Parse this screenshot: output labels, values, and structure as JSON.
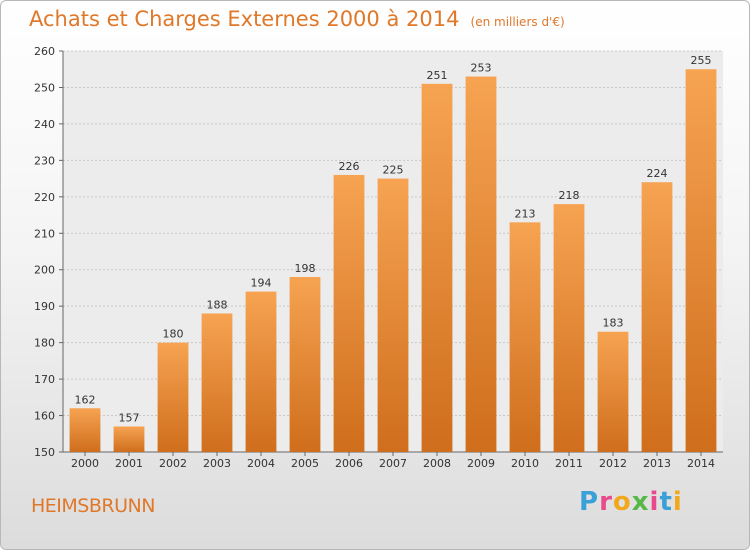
{
  "title": "Achats et Charges Externes 2000 à 2014",
  "unit": "(en milliers d'€)",
  "place": "HEIMSBRUNN",
  "logo": {
    "p": "P",
    "r": "r",
    "o": "o",
    "x": "x",
    "i": "i",
    "t": "t",
    "i2": "i"
  },
  "colors": {
    "bar_light": "#f6a352",
    "bar_dark": "#cf6e1c",
    "title": "#e0782a"
  },
  "chart_data": {
    "type": "bar",
    "title": "Achats et Charges Externes 2000 à 2014",
    "subtitle": "(en milliers d'€)",
    "xlabel": "",
    "ylabel": "",
    "categories": [
      "2000",
      "2001",
      "2002",
      "2003",
      "2004",
      "2005",
      "2006",
      "2007",
      "2008",
      "2009",
      "2010",
      "2011",
      "2012",
      "2013",
      "2014"
    ],
    "values": [
      162,
      157,
      180,
      188,
      194,
      198,
      226,
      225,
      251,
      253,
      213,
      218,
      183,
      224,
      255
    ],
    "ylim": [
      150,
      260
    ],
    "yticks": [
      150,
      160,
      170,
      180,
      190,
      200,
      210,
      220,
      230,
      240,
      250,
      260
    ],
    "grid": true,
    "legend": "none"
  }
}
